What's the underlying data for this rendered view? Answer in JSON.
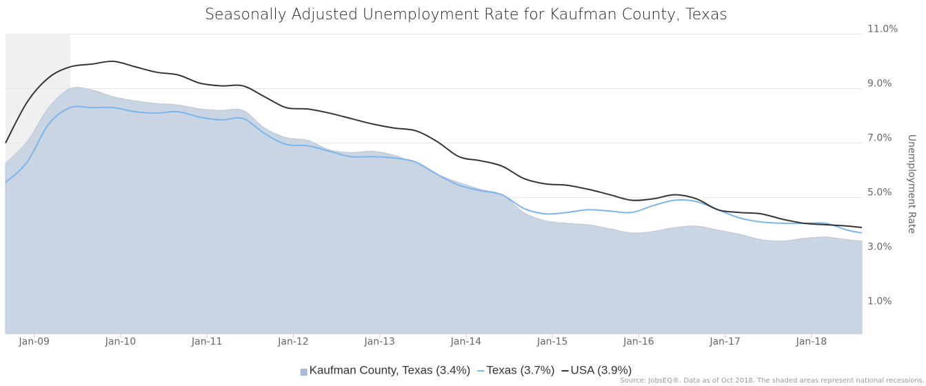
{
  "chart_data": {
    "type": "line",
    "title": "Seasonally Adjusted Unemployment Rate for Kaufman County, Texas",
    "y_axis_label": "Unemployment Rate",
    "source": "Source: JobsEQ®. Data as of Oct 2018. The shaded areas represent national recessions.",
    "x": [
      "2008-09",
      "2008-12",
      "2009-03",
      "2009-06",
      "2009-09",
      "2009-12",
      "2010-03",
      "2010-06",
      "2010-09",
      "2010-12",
      "2011-03",
      "2011-06",
      "2011-09",
      "2011-12",
      "2012-03",
      "2012-06",
      "2012-09",
      "2012-12",
      "2013-03",
      "2013-06",
      "2013-09",
      "2013-12",
      "2014-03",
      "2014-06",
      "2014-09",
      "2014-12",
      "2015-03",
      "2015-06",
      "2015-09",
      "2015-12",
      "2016-03",
      "2016-06",
      "2016-09",
      "2016-12",
      "2017-03",
      "2017-06",
      "2017-09",
      "2017-12",
      "2018-03",
      "2018-06",
      "2018-08"
    ],
    "xlim": [
      "2008-09",
      "2018-08"
    ],
    "xticks": [
      {
        "value": "2009-01",
        "label": "Jan-09"
      },
      {
        "value": "2010-01",
        "label": "Jan-10"
      },
      {
        "value": "2011-01",
        "label": "Jan-11"
      },
      {
        "value": "2012-01",
        "label": "Jan-12"
      },
      {
        "value": "2013-01",
        "label": "Jan-13"
      },
      {
        "value": "2014-01",
        "label": "Jan-14"
      },
      {
        "value": "2015-01",
        "label": "Jan-15"
      },
      {
        "value": "2016-01",
        "label": "Jan-16"
      },
      {
        "value": "2017-01",
        "label": "Jan-17"
      },
      {
        "value": "2018-01",
        "label": "Jan-18"
      }
    ],
    "ylim": [
      0,
      11
    ],
    "yticks": [
      {
        "value": 1,
        "label": "1.0%"
      },
      {
        "value": 3,
        "label": "3.0%"
      },
      {
        "value": 5,
        "label": "5.0%"
      },
      {
        "value": 7,
        "label": "7.0%"
      },
      {
        "value": 9,
        "label": "9.0%"
      },
      {
        "value": 11,
        "label": "11.0%"
      }
    ],
    "grid": true,
    "recessions": [
      [
        "2008-09",
        "2009-06"
      ]
    ],
    "series": [
      {
        "name": "Kaufman County, Texas (3.4%)",
        "color": "#c7d3e3",
        "style": "area",
        "values": [
          6.25,
          7.05,
          8.3,
          9.0,
          8.95,
          8.7,
          8.55,
          8.45,
          8.4,
          8.25,
          8.2,
          8.2,
          7.55,
          7.2,
          7.1,
          6.75,
          6.65,
          6.7,
          6.55,
          6.25,
          5.85,
          5.55,
          5.3,
          5.1,
          4.45,
          4.15,
          4.05,
          4.0,
          3.85,
          3.7,
          3.75,
          3.9,
          3.95,
          3.8,
          3.65,
          3.45,
          3.4,
          3.5,
          3.55,
          3.45,
          3.4
        ]
      },
      {
        "name": "Texas (3.7%)",
        "color": "#7cb5ec",
        "style": "line",
        "values": [
          5.55,
          6.3,
          7.7,
          8.3,
          8.3,
          8.3,
          8.15,
          8.1,
          8.15,
          7.95,
          7.85,
          7.9,
          7.35,
          6.95,
          6.9,
          6.7,
          6.5,
          6.5,
          6.45,
          6.3,
          5.85,
          5.45,
          5.25,
          5.1,
          4.6,
          4.4,
          4.45,
          4.55,
          4.5,
          4.45,
          4.7,
          4.9,
          4.85,
          4.55,
          4.25,
          4.1,
          4.05,
          4.05,
          4.05,
          3.8,
          3.7
        ]
      },
      {
        "name": "USA (3.9%)",
        "color": "#333333",
        "style": "line",
        "values": [
          7.0,
          8.5,
          9.4,
          9.8,
          9.9,
          10.0,
          9.8,
          9.6,
          9.5,
          9.2,
          9.1,
          9.1,
          8.7,
          8.3,
          8.25,
          8.1,
          7.9,
          7.7,
          7.55,
          7.45,
          7.05,
          6.5,
          6.35,
          6.15,
          5.7,
          5.5,
          5.45,
          5.3,
          5.1,
          4.9,
          4.95,
          5.1,
          4.95,
          4.55,
          4.45,
          4.4,
          4.2,
          4.05,
          4.0,
          3.95,
          3.9
        ]
      }
    ]
  }
}
